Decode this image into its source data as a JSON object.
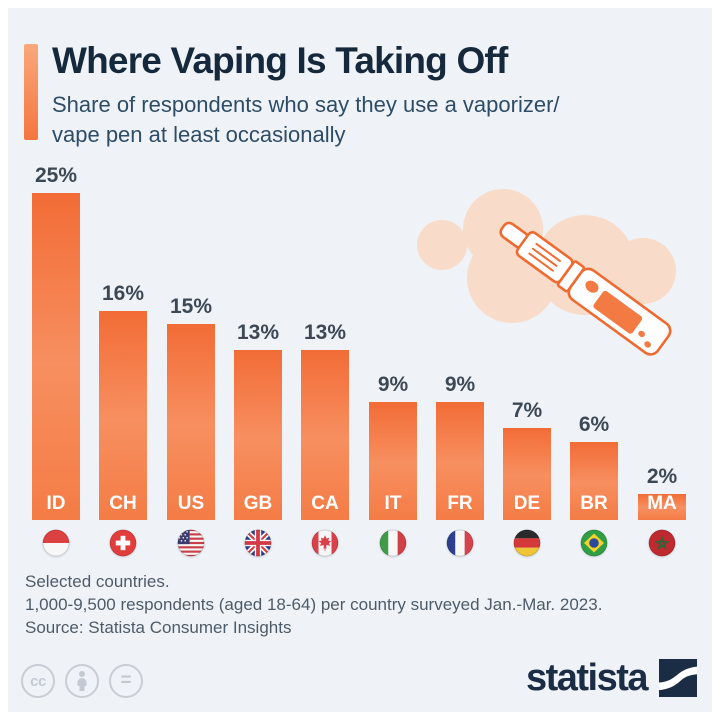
{
  "header": {
    "title": "Where Vaping Is Taking Off",
    "subtitle_line1": "Share of respondents who say they use a vaporizer/",
    "subtitle_line2": "vape pen at least occasionally"
  },
  "chart_data": {
    "type": "bar",
    "title": "Where Vaping Is Taking Off",
    "subtitle": "Share of respondents who say they use a vaporizer/vape pen at least occasionally",
    "categories": [
      "ID",
      "CH",
      "US",
      "GB",
      "CA",
      "IT",
      "FR",
      "DE",
      "BR",
      "MA"
    ],
    "values": [
      25,
      16,
      15,
      13,
      13,
      9,
      9,
      7,
      6,
      2
    ],
    "value_labels": [
      "25%",
      "16%",
      "15%",
      "13%",
      "13%",
      "9%",
      "9%",
      "7%",
      "6%",
      "2%"
    ],
    "flags": [
      "indonesia-flag",
      "switzerland-flag",
      "united-states-flag",
      "united-kingdom-flag",
      "canada-flag",
      "italy-flag",
      "france-flag",
      "germany-flag",
      "brazil-flag",
      "morocco-flag"
    ],
    "unit": "%",
    "ylim": [
      0,
      25
    ],
    "grid": false,
    "legend": false,
    "bar_gradient": [
      "#f26c36",
      "#f78f60",
      "#f47c45"
    ]
  },
  "illustration": {
    "name": "vape-pen-with-smoke-cloud",
    "outline_color": "#ee6a30",
    "cloud_color": "#f8dbc9"
  },
  "footer": {
    "note1": "Selected countries.",
    "note2": "1,000-9,500 respondents (aged 18-64) per country surveyed Jan.-Mar. 2023.",
    "source": "Source: Statista Consumer Insights"
  },
  "branding": {
    "logo_text": "statista",
    "license_icons": [
      "cc-icon",
      "attribution-person-icon",
      "no-derivatives-icon"
    ]
  },
  "colors": {
    "background": "#eff3f8",
    "frame": "#ffffff",
    "accent": "#f26c36",
    "title_text": "#16293c",
    "subtitle_text": "#2e4c66",
    "value_text": "#3c4854",
    "footer_text": "#4d5b68",
    "logo_navy": "#1b2c45"
  }
}
